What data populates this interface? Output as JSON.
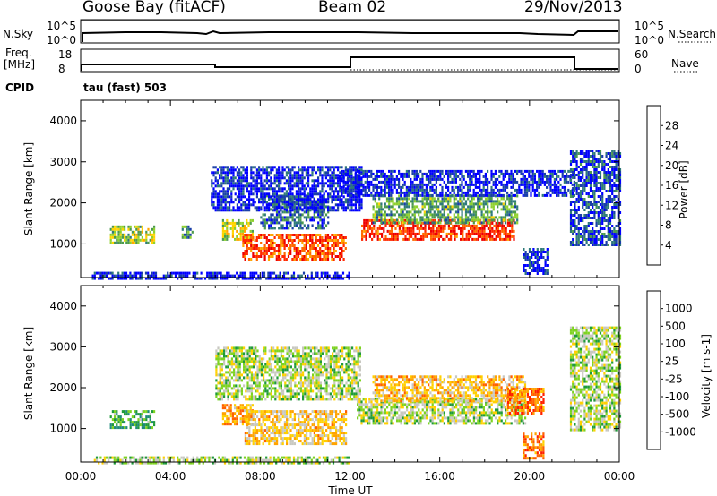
{
  "header": {
    "station": "Goose Bay (fitACF)",
    "beam": "Beam 02",
    "date": "29/Nov/2013"
  },
  "top_panels": {
    "nsky_label": "N.Sky",
    "nsky_ticks": [
      "10^5",
      "10^0"
    ],
    "nsearch_label": "N.Search",
    "nsearch_ticks": [
      "10^5",
      "10^0"
    ],
    "freq_label_line1": "Freq.",
    "freq_label_line2": "[MHz]",
    "freq_ticks": [
      "18",
      "8"
    ],
    "nave_label": "Nave",
    "nave_ticks": [
      "60",
      "0"
    ],
    "cpid_label": "CPID",
    "cpid_value": "tau (fast) 503"
  },
  "chart_data": [
    {
      "type": "heatmap",
      "name": "power-panel",
      "ylabel": "Slant Range [km]",
      "yticks": [
        1000,
        2000,
        3000,
        4000
      ],
      "ylim": [
        180,
        4500
      ],
      "xlim_hours": [
        0,
        24
      ],
      "colorbar_label": "Power [dB]",
      "colorbar_ticks": [
        "28",
        "24",
        "20",
        "16",
        "12",
        "8",
        "4"
      ],
      "colors": [
        "#0000ff",
        "#1a3fa8",
        "#2f7a7a",
        "#4c9a4c",
        "#8fd12e",
        "#ffd400",
        "#ffa600",
        "#ff6a00",
        "#ff2a00",
        "#ee0000"
      ],
      "regions": [
        {
          "t0": 1.3,
          "t1": 3.3,
          "r0": 1000,
          "r1": 1450,
          "level": 0.45
        },
        {
          "t0": 4.5,
          "t1": 5.0,
          "r0": 1150,
          "r1": 1450,
          "level": 0.3
        },
        {
          "t0": 6.3,
          "t1": 7.7,
          "r0": 1100,
          "r1": 1600,
          "level": 0.5
        },
        {
          "t0": 7.2,
          "t1": 11.8,
          "r0": 600,
          "r1": 1250,
          "level": 0.8
        },
        {
          "t0": 8.0,
          "t1": 11.0,
          "r0": 1400,
          "r1": 2200,
          "level": 0.2
        },
        {
          "t0": 5.8,
          "t1": 12.5,
          "r0": 1800,
          "r1": 2900,
          "level": 0.08
        },
        {
          "t0": 12.5,
          "t1": 19.3,
          "r0": 1100,
          "r1": 1600,
          "level": 0.85
        },
        {
          "t0": 13.0,
          "t1": 19.5,
          "r0": 1500,
          "r1": 2200,
          "level": 0.35
        },
        {
          "t0": 11.5,
          "t1": 22.0,
          "r0": 2200,
          "r1": 2800,
          "level": 0.08
        },
        {
          "t0": 19.7,
          "t1": 20.8,
          "r0": 300,
          "r1": 900,
          "level": 0.1
        },
        {
          "t0": 21.8,
          "t1": 24.0,
          "r0": 1000,
          "r1": 3300,
          "level": 0.15
        },
        {
          "t0": 0.5,
          "t1": 12.0,
          "r0": 180,
          "r1": 320,
          "level": 0.06
        }
      ]
    },
    {
      "type": "heatmap",
      "name": "velocity-panel",
      "ylabel": "Slant Range [km]",
      "yticks": [
        1000,
        2000,
        3000,
        4000
      ],
      "ylim": [
        180,
        4500
      ],
      "xlim_hours": [
        0,
        24
      ],
      "xticks": [
        "00:00",
        "04:00",
        "08:00",
        "12:00",
        "16:00",
        "20:00",
        "00:00"
      ],
      "xlabel": "Time UT",
      "colorbar_label": "Velocity [m s-1]",
      "colorbar_ticks": [
        "1000",
        "500",
        "100",
        "25",
        "-25",
        "-100",
        "-500",
        "-1000"
      ],
      "colors": [
        "#1f3fbf",
        "#1f8a7a",
        "#1f9a3a",
        "#7ed321",
        "#c8c8c0",
        "#ffd000",
        "#ffa300",
        "#ff6000",
        "#ff2000"
      ],
      "regions": [
        {
          "t0": 1.3,
          "t1": 3.3,
          "r0": 1000,
          "r1": 1450,
          "level": 0.3
        },
        {
          "t0": 6.3,
          "t1": 7.7,
          "r0": 1100,
          "r1": 1600,
          "level": 0.7
        },
        {
          "t0": 7.3,
          "t1": 11.8,
          "r0": 650,
          "r1": 1450,
          "level": 0.62
        },
        {
          "t0": 6.0,
          "t1": 12.5,
          "r0": 1700,
          "r1": 3000,
          "level": 0.45
        },
        {
          "t0": 12.3,
          "t1": 19.8,
          "r0": 1100,
          "r1": 1750,
          "level": 0.45
        },
        {
          "t0": 13.0,
          "t1": 19.8,
          "r0": 1700,
          "r1": 2300,
          "level": 0.65
        },
        {
          "t0": 19.0,
          "t1": 20.6,
          "r0": 1400,
          "r1": 2000,
          "level": 0.8
        },
        {
          "t0": 19.7,
          "t1": 20.6,
          "r0": 300,
          "r1": 900,
          "level": 0.8
        },
        {
          "t0": 21.8,
          "t1": 24.0,
          "r0": 1000,
          "r1": 3500,
          "level": 0.45
        },
        {
          "t0": 0.5,
          "t1": 12.0,
          "r0": 180,
          "r1": 320,
          "level": 0.45
        }
      ]
    }
  ]
}
